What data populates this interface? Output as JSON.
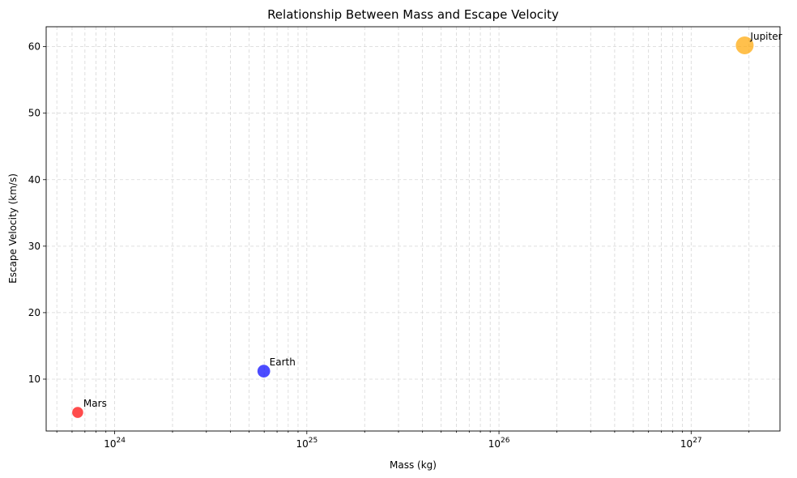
{
  "chart_data": {
    "type": "scatter",
    "title": "Relationship Between Mass and Escape Velocity",
    "xlabel": "Mass (kg)",
    "ylabel": "Escape Velocity (km/s)",
    "xscale": "log",
    "xlim": [
      4.4e+23,
      2.9e+27
    ],
    "ylim": [
      2.2,
      63.0
    ],
    "grid": true,
    "x_ticks": [
      {
        "value": 1e+24,
        "base": "10",
        "exp": "24"
      },
      {
        "value": 1e+25,
        "base": "10",
        "exp": "25"
      },
      {
        "value": 1e+26,
        "base": "10",
        "exp": "26"
      },
      {
        "value": 1e+27,
        "base": "10",
        "exp": "27"
      }
    ],
    "y_ticks": [
      10,
      20,
      30,
      40,
      50,
      60
    ],
    "points": [
      {
        "name": "Mars",
        "x": 6.42e+23,
        "y": 5.0,
        "color": "#ff0000",
        "size": 0.4
      },
      {
        "name": "Earth",
        "x": 5.97e+24,
        "y": 11.2,
        "color": "#0000ff",
        "size": 0.55
      },
      {
        "name": "Jupiter",
        "x": 1.9e+27,
        "y": 60.2,
        "color": "#ffa500",
        "size": 1.0
      }
    ]
  }
}
